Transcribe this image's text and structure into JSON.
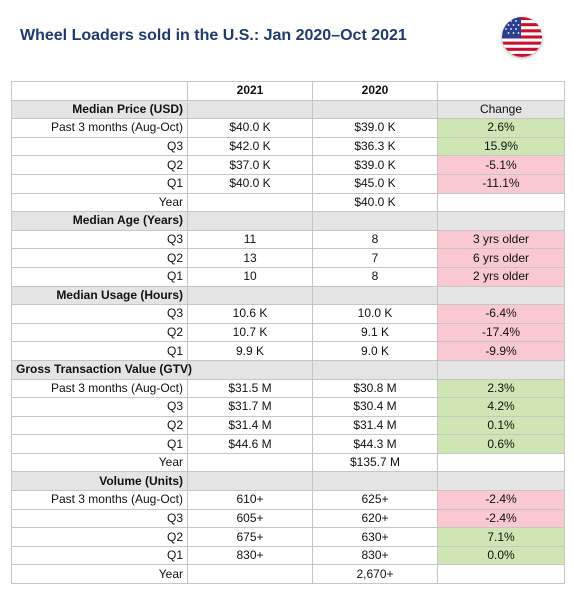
{
  "title": "Wheel Loaders sold in the U.S.: Jan 2020–Oct 2021",
  "flag_icon": "us-flag-icon",
  "colors": {
    "positive": "#cfe6b4",
    "negative": "#f9c8d0",
    "section": "#e4e4e4",
    "title": "#1f3a6e"
  },
  "header": {
    "col1": "",
    "col2": "2021",
    "col3": "2020",
    "col4": ""
  },
  "sections": [
    {
      "label": "Median Price (USD)",
      "change_header": "Change",
      "rows": [
        {
          "label": "Past 3 months (Aug-Oct)",
          "v2021": "$40.0 K",
          "v2020": "$39.0 K",
          "change": "2.6%",
          "tone": "pos"
        },
        {
          "label": "Q3",
          "v2021": "$42.0 K",
          "v2020": "$36.3 K",
          "change": "15.9%",
          "tone": "pos"
        },
        {
          "label": "Q2",
          "v2021": "$37.0 K",
          "v2020": "$39.0 K",
          "change": "-5.1%",
          "tone": "neg"
        },
        {
          "label": "Q1",
          "v2021": "$40.0 K",
          "v2020": "$45.0 K",
          "change": "-11.1%",
          "tone": "neg"
        },
        {
          "label": "Year",
          "v2021": "",
          "v2020": "$40.0 K",
          "change": "",
          "tone": "none"
        }
      ]
    },
    {
      "label": "Median Age (Years)",
      "change_header": "",
      "rows": [
        {
          "label": "Q3",
          "v2021": "11",
          "v2020": "8",
          "change": "3 yrs older",
          "tone": "neg"
        },
        {
          "label": "Q2",
          "v2021": "13",
          "v2020": "7",
          "change": "6 yrs older",
          "tone": "neg"
        },
        {
          "label": "Q1",
          "v2021": "10",
          "v2020": "8",
          "change": "2 yrs older",
          "tone": "neg"
        }
      ]
    },
    {
      "label": "Median Usage (Hours)",
      "change_header": "",
      "rows": [
        {
          "label": "Q3",
          "v2021": "10.6 K",
          "v2020": "10.0 K",
          "change": "-6.4%",
          "tone": "neg"
        },
        {
          "label": "Q2",
          "v2021": "10.7 K",
          "v2020": "9.1 K",
          "change": "-17.4%",
          "tone": "neg"
        },
        {
          "label": "Q1",
          "v2021": "9.9 K",
          "v2020": "9.0 K",
          "change": "-9.9%",
          "tone": "neg"
        }
      ]
    },
    {
      "label": "Gross Transaction Value (GTV)",
      "change_header": "",
      "rows": [
        {
          "label": "Past 3 months (Aug-Oct)",
          "v2021": "$31.5 M",
          "v2020": "$30.8 M",
          "change": "2.3%",
          "tone": "pos"
        },
        {
          "label": "Q3",
          "v2021": "$31.7 M",
          "v2020": "$30.4 M",
          "change": "4.2%",
          "tone": "pos"
        },
        {
          "label": "Q2",
          "v2021": "$31.4 M",
          "v2020": "$31.4 M",
          "change": "0.1%",
          "tone": "pos"
        },
        {
          "label": "Q1",
          "v2021": "$44.6 M",
          "v2020": "$44.3 M",
          "change": "0.6%",
          "tone": "pos"
        },
        {
          "label": "Year",
          "v2021": "",
          "v2020": "$135.7 M",
          "change": "",
          "tone": "none"
        }
      ]
    },
    {
      "label": "Volume (Units)",
      "change_header": "",
      "rows": [
        {
          "label": "Past 3 months (Aug-Oct)",
          "v2021": "610+",
          "v2020": "625+",
          "change": "-2.4%",
          "tone": "neg"
        },
        {
          "label": "Q3",
          "v2021": "605+",
          "v2020": "620+",
          "change": "-2.4%",
          "tone": "neg"
        },
        {
          "label": "Q2",
          "v2021": "675+",
          "v2020": "630+",
          "change": "7.1%",
          "tone": "pos"
        },
        {
          "label": "Q1",
          "v2021": "830+",
          "v2020": "830+",
          "change": "0.0%",
          "tone": "pos"
        },
        {
          "label": "Year",
          "v2021": "",
          "v2020": "2,670+",
          "change": "",
          "tone": "none"
        }
      ]
    }
  ]
}
